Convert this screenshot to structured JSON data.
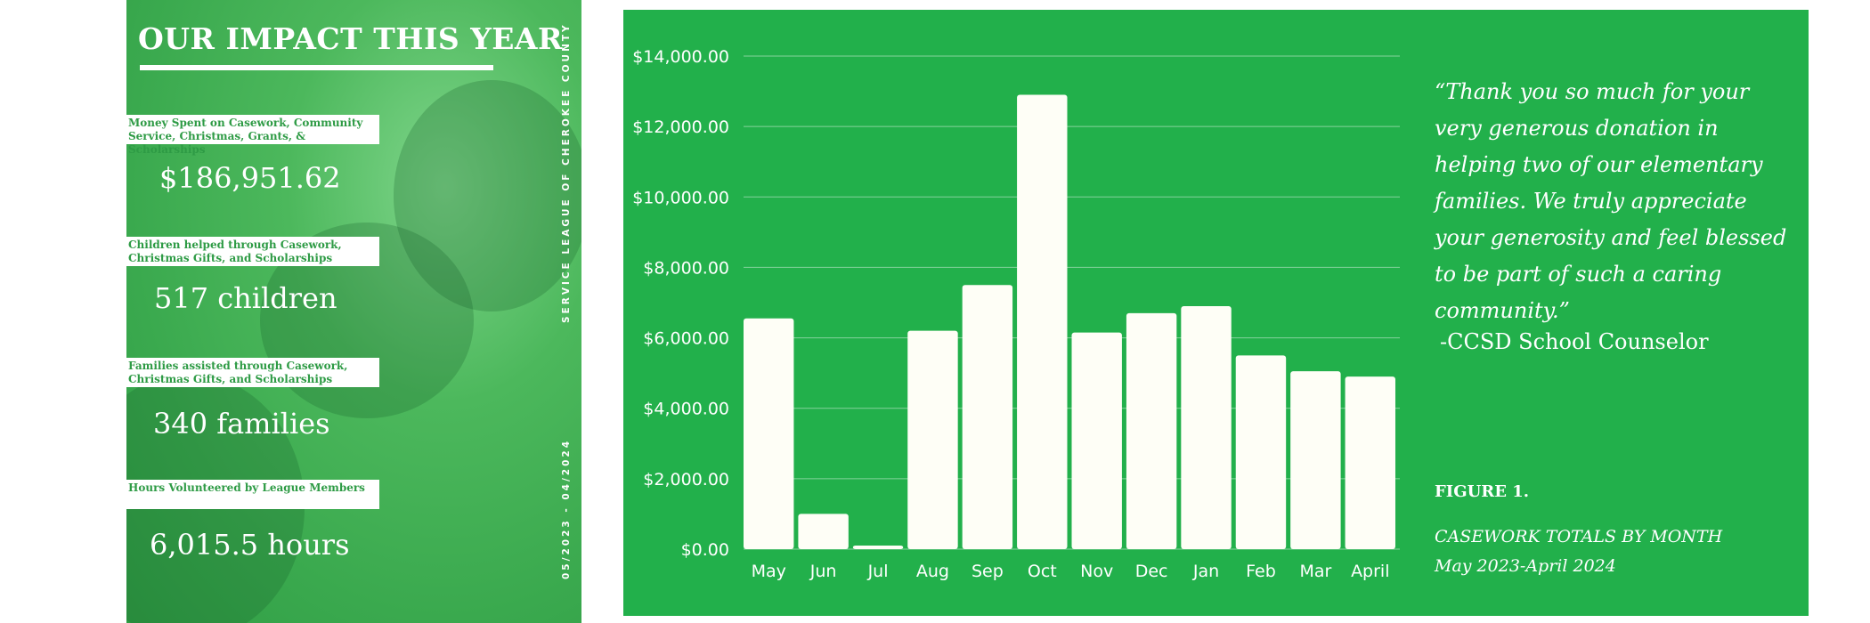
{
  "left_panel": {
    "title": "OUR IMPACT THIS YEAR",
    "vertical_org": "SERVICE LEAGUE OF CHEROKEE COUNTY",
    "vertical_dates": "05/2023 - 04/2024",
    "stats": [
      {
        "label": "Money Spent on Casework, Community Service, Christmas, Grants, & Scholarships",
        "value": "$186,951.62"
      },
      {
        "label": "Children helped through Casework, Christmas Gifts, and Scholarships",
        "value": "517 children"
      },
      {
        "label": "Families assisted through Casework, Christmas Gifts, and Scholarships",
        "value": "340 families"
      },
      {
        "label": "Hours Volunteered by League Members",
        "value": "6,015.5 hours"
      }
    ]
  },
  "quote": {
    "text": "“Thank you so much for your very generous donation in helping two of our elementary families.  We truly appreciate your generosity and feel blessed to be part of such a caring community.”",
    "author": "-CCSD School Counselor"
  },
  "figure": {
    "label": "FIGURE 1.",
    "caption_line1": "CASEWORK TOTALS BY MONTH",
    "caption_line2": "May 2023-April 2024"
  },
  "colors": {
    "panel_green": "#22b04b",
    "bar_fill": "#fefef6",
    "label_green": "#2e9b45"
  },
  "chart_data": {
    "type": "bar",
    "categories": [
      "May",
      "Jun",
      "Jul",
      "Aug",
      "Sep",
      "Oct",
      "Nov",
      "Dec",
      "Jan",
      "Feb",
      "Mar",
      "April"
    ],
    "values": [
      6550,
      1000,
      100,
      6200,
      7500,
      12900,
      6150,
      6700,
      6900,
      5500,
      5050,
      4900
    ],
    "ylim": [
      0,
      14000
    ],
    "yticks": [
      0,
      2000,
      4000,
      6000,
      8000,
      10000,
      12000,
      14000
    ],
    "ytick_labels": [
      "$0.00",
      "$2,000.00",
      "$4,000.00",
      "$6,000.00",
      "$8,000.00",
      "$10,000.00",
      "$12,000.00",
      "$14,000.00"
    ],
    "title": "",
    "xlabel": "",
    "ylabel": "",
    "grid": true,
    "legend": "none"
  }
}
